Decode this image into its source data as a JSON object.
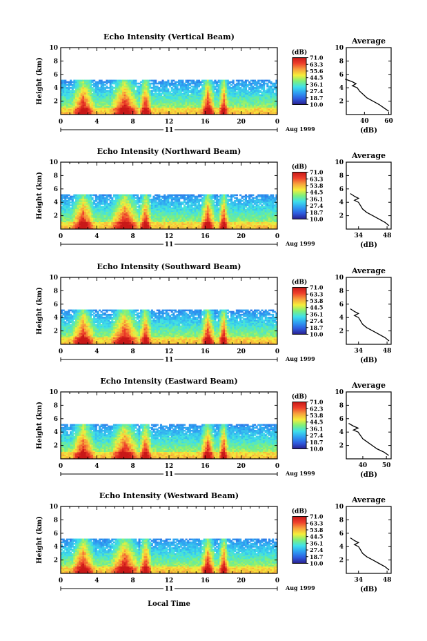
{
  "chart_data": [
    {
      "type": "heatmap",
      "title": "Echo Intensity (Vertical Beam)",
      "ylabel": "Height (km)",
      "x_ticks": [
        "0",
        "4",
        "8",
        "12",
        "16",
        "20",
        "0"
      ],
      "x_range": [
        0,
        24
      ],
      "y_ticks": [
        "2",
        "4",
        "6",
        "8",
        "10"
      ],
      "y_range": [
        0,
        10
      ],
      "date_label": "11",
      "month_year": "Aug 1999",
      "colorbar_unit": "(dB)",
      "colorbar_ticks": [
        "71.0",
        "63.3",
        "55.6",
        "44.5",
        "36.1",
        "27.4",
        "18.7",
        "10.0"
      ],
      "colorbar_range": [
        10.0,
        71.0
      ],
      "echo_top_km": 5.2,
      "strong_periods_lt": [
        [
          1.5,
          3.5
        ],
        [
          5.8,
          8.4
        ],
        [
          9.0,
          9.8
        ],
        [
          15.8,
          16.8
        ],
        [
          17.8,
          18.3
        ]
      ],
      "average": {
        "title": "Average",
        "xlabel": "(dB)",
        "x_ticks": [
          "40",
          "60"
        ],
        "x_range": [
          25,
          62
        ],
        "y_ticks": [
          "2",
          "4",
          "6",
          "8",
          "10"
        ],
        "y_range": [
          0,
          10
        ],
        "profile_height_km": [
          0.5,
          1.0,
          1.5,
          2.0,
          2.5,
          3.0,
          3.5,
          4.0,
          4.3,
          4.6,
          4.9,
          5.1,
          5.3
        ],
        "profile_db": [
          60,
          56,
          52,
          47,
          42,
          39,
          36,
          34,
          30,
          33,
          30,
          27,
          24
        ]
      }
    },
    {
      "type": "heatmap",
      "title": "Echo Intensity (Northward Beam)",
      "ylabel": "Height (km)",
      "x_ticks": [
        "0",
        "4",
        "8",
        "12",
        "16",
        "20",
        "0"
      ],
      "x_range": [
        0,
        24
      ],
      "y_ticks": [
        "2",
        "4",
        "6",
        "8",
        "10"
      ],
      "y_range": [
        0,
        10
      ],
      "date_label": "11",
      "month_year": "Aug 1999",
      "colorbar_unit": "(dB)",
      "colorbar_ticks": [
        "71.0",
        "63.3",
        "53.8",
        "44.5",
        "36.1",
        "27.4",
        "18.7",
        "10.0"
      ],
      "colorbar_range": [
        10.0,
        71.0
      ],
      "echo_top_km": 5.2,
      "strong_periods_lt": [
        [
          1.5,
          3.5
        ],
        [
          5.8,
          8.4
        ],
        [
          9.0,
          9.8
        ],
        [
          15.8,
          16.8
        ],
        [
          17.8,
          18.3
        ]
      ],
      "average": {
        "title": "Average",
        "xlabel": "(dB)",
        "x_ticks": [
          "34",
          "48"
        ],
        "x_range": [
          28,
          50
        ],
        "y_ticks": [
          "2",
          "4",
          "6",
          "8",
          "10"
        ],
        "y_range": [
          0,
          10
        ],
        "profile_height_km": [
          0.5,
          1.0,
          1.5,
          2.0,
          2.5,
          3.0,
          3.5,
          4.0,
          4.3,
          4.6,
          4.9,
          5.1,
          5.3
        ],
        "profile_db": [
          49,
          47,
          44,
          41,
          38,
          36,
          35,
          34,
          32,
          34,
          32,
          31,
          30
        ]
      }
    },
    {
      "type": "heatmap",
      "title": "Echo Intensity (Southward Beam)",
      "ylabel": "Height (km)",
      "x_ticks": [
        "0",
        "4",
        "8",
        "12",
        "16",
        "20",
        "0"
      ],
      "x_range": [
        0,
        24
      ],
      "y_ticks": [
        "2",
        "4",
        "6",
        "8",
        "10"
      ],
      "y_range": [
        0,
        10
      ],
      "date_label": "11",
      "month_year": "Aug 1999",
      "colorbar_unit": "(dB)",
      "colorbar_ticks": [
        "71.0",
        "63.3",
        "53.8",
        "44.5",
        "36.1",
        "27.4",
        "18.7",
        "10.0"
      ],
      "colorbar_range": [
        10.0,
        71.0
      ],
      "echo_top_km": 5.2,
      "strong_periods_lt": [
        [
          1.5,
          3.5
        ],
        [
          5.8,
          8.4
        ],
        [
          9.0,
          9.8
        ],
        [
          15.8,
          16.8
        ],
        [
          17.8,
          18.3
        ]
      ],
      "average": {
        "title": "Average",
        "xlabel": "(dB)",
        "x_ticks": [
          "34",
          "48"
        ],
        "x_range": [
          28,
          50
        ],
        "y_ticks": [
          "2",
          "4",
          "6",
          "8",
          "10"
        ],
        "y_range": [
          0,
          10
        ],
        "profile_height_km": [
          0.5,
          1.0,
          1.5,
          2.0,
          2.5,
          3.0,
          3.5,
          4.0,
          4.3,
          4.6,
          4.9,
          5.1,
          5.3
        ],
        "profile_db": [
          49,
          47,
          44,
          41,
          38,
          36,
          35,
          34,
          32,
          34,
          32,
          31,
          30
        ]
      }
    },
    {
      "type": "heatmap",
      "title": "Echo Intensity (Eastward Beam)",
      "ylabel": "Height (km)",
      "x_ticks": [
        "0",
        "4",
        "8",
        "12",
        "16",
        "20",
        "0"
      ],
      "x_range": [
        0,
        24
      ],
      "y_ticks": [
        "2",
        "4",
        "6",
        "8",
        "10"
      ],
      "y_range": [
        0,
        10
      ],
      "date_label": "11",
      "month_year": "Aug 1999",
      "colorbar_unit": "(dB)",
      "colorbar_ticks": [
        "71.0",
        "62.3",
        "53.8",
        "44.5",
        "36.1",
        "27.4",
        "18.7",
        "10.0"
      ],
      "colorbar_range": [
        10.0,
        71.0
      ],
      "echo_top_km": 5.2,
      "strong_periods_lt": [
        [
          1.5,
          3.5
        ],
        [
          5.8,
          8.4
        ],
        [
          9.0,
          9.8
        ],
        [
          15.8,
          16.8
        ],
        [
          17.8,
          18.3
        ]
      ],
      "average": {
        "title": "Average",
        "xlabel": "(dB)",
        "x_ticks": [
          "40",
          "50"
        ],
        "x_range": [
          33,
          52
        ],
        "y_ticks": [
          "2",
          "4",
          "6",
          "8",
          "10"
        ],
        "y_range": [
          0,
          10
        ],
        "profile_height_km": [
          0.5,
          1.0,
          1.5,
          2.0,
          2.5,
          3.0,
          3.5,
          4.0,
          4.3,
          4.6,
          4.9,
          5.1,
          5.3
        ],
        "profile_db": [
          51,
          49,
          46,
          44,
          42,
          40,
          39,
          38,
          36,
          38,
          36,
          35,
          34
        ]
      }
    },
    {
      "type": "heatmap",
      "title": "Echo Intensity (Westward Beam)",
      "ylabel": "Height (km)",
      "x_ticks": [
        "0",
        "4",
        "8",
        "12",
        "16",
        "20",
        "0"
      ],
      "x_range": [
        0,
        24
      ],
      "y_ticks": [
        "2",
        "4",
        "6",
        "8",
        "10"
      ],
      "y_range": [
        0,
        10
      ],
      "date_label": "11",
      "month_year": "Aug 1999",
      "colorbar_unit": "(dB)",
      "colorbar_ticks": [
        "71.0",
        "63.3",
        "53.8",
        "44.5",
        "36.1",
        "27.4",
        "18.7",
        "10.0"
      ],
      "colorbar_range": [
        10.0,
        71.0
      ],
      "echo_top_km": 5.2,
      "strong_periods_lt": [
        [
          1.5,
          3.5
        ],
        [
          5.8,
          8.4
        ],
        [
          9.0,
          9.8
        ],
        [
          15.8,
          16.8
        ],
        [
          17.8,
          18.3
        ]
      ],
      "average": {
        "title": "Average",
        "xlabel": "(dB)",
        "x_ticks": [
          "34",
          "48"
        ],
        "x_range": [
          28,
          50
        ],
        "y_ticks": [
          "2",
          "4",
          "6",
          "8",
          "10"
        ],
        "y_range": [
          0,
          10
        ],
        "profile_height_km": [
          0.5,
          1.0,
          1.5,
          2.0,
          2.5,
          3.0,
          3.5,
          4.0,
          4.3,
          4.6,
          4.9,
          5.1,
          5.3
        ],
        "profile_db": [
          49,
          47,
          44,
          41,
          38,
          36,
          35,
          34,
          32,
          34,
          32,
          31,
          30
        ]
      }
    }
  ],
  "xlabel": "Local Time",
  "colors": {
    "scale": [
      "#2a1f8f",
      "#2e5de0",
      "#2f9ff2",
      "#3ee0ea",
      "#7ff07a",
      "#f6ee3a",
      "#f7a13c",
      "#ee3f2b",
      "#c81818"
    ]
  }
}
